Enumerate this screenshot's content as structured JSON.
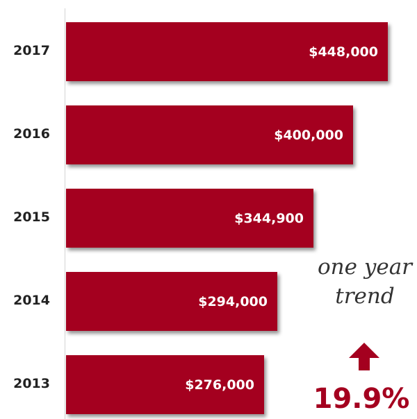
{
  "chart_data": {
    "type": "bar",
    "orientation": "horizontal",
    "categories": [
      "2017",
      "2016",
      "2015",
      "2014",
      "2013"
    ],
    "values": [
      448000,
      400000,
      344900,
      294000,
      276000
    ],
    "value_labels": [
      "$448,000",
      "$400,000",
      "$344,900",
      "$294,000",
      "$276,000"
    ],
    "bar_color": "#a4001f",
    "grid": false,
    "title": "",
    "xlabel": "",
    "ylabel": ""
  },
  "trend": {
    "label_line1": "one year",
    "label_line2": "trend",
    "direction": "up",
    "arrow_icon": "arrow-up-icon",
    "value": "19.9%",
    "color": "#a4001f"
  }
}
